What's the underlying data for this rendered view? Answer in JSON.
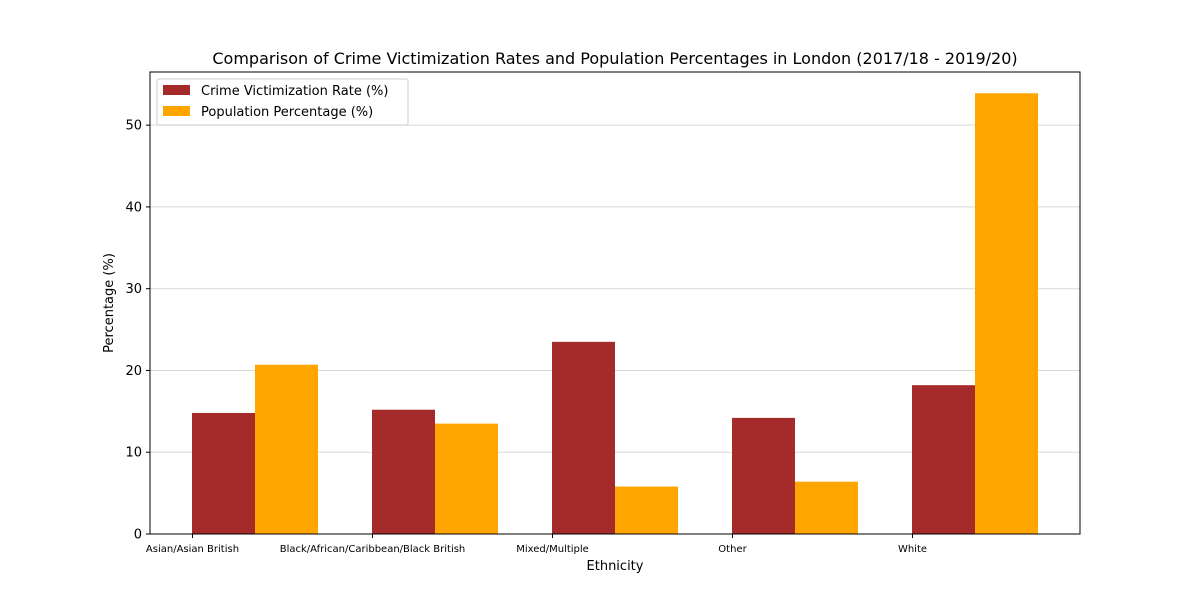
{
  "chart_data": {
    "type": "bar",
    "title": "Comparison of Crime Victimization Rates and Population Percentages in London (2017/18 - 2019/20)",
    "xlabel": "Ethnicity",
    "ylabel": "Percentage (%)",
    "categories": [
      "Asian/Asian British",
      "Black/African/Caribbean/Black British",
      "Mixed/Multiple",
      "Other",
      "White"
    ],
    "series": [
      {
        "name": "Crime Victimization Rate (%)",
        "color": "#a52a2a",
        "values": [
          14.8,
          15.2,
          23.5,
          14.2,
          18.2
        ]
      },
      {
        "name": "Population Percentage (%)",
        "color": "#ffa500",
        "values": [
          20.7,
          13.5,
          5.8,
          6.4,
          53.9
        ]
      }
    ],
    "ylim": [
      0,
      56.5
    ],
    "yticks": [
      0,
      10,
      20,
      30,
      40,
      50
    ],
    "grid": "y",
    "legend": "top-left"
  }
}
